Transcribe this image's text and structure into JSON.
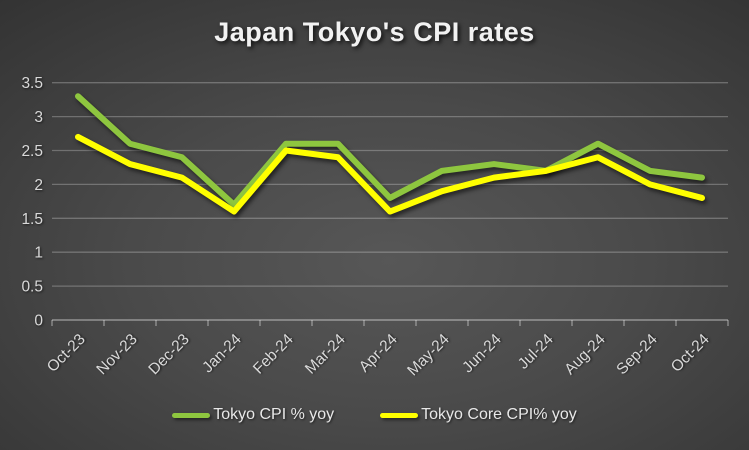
{
  "chart_data": {
    "type": "line",
    "title": "Japan Tokyo's CPI rates",
    "categories": [
      "Oct-23",
      "Nov-23",
      "Dec-23",
      "Jan-24",
      "Feb-24",
      "Mar-24",
      "Apr-24",
      "May-24",
      "Jun-24",
      "Jul-24",
      "Aug-24",
      "Sep-24",
      "Oct-24"
    ],
    "series": [
      {
        "name": "Tokyo CPI % yoy",
        "color": "#8EC63F",
        "values": [
          3.3,
          2.6,
          2.4,
          1.7,
          2.6,
          2.6,
          1.8,
          2.2,
          2.3,
          2.2,
          2.6,
          2.2,
          2.1
        ]
      },
      {
        "name": "Tokyo Core CPI% yoy",
        "color": "#FFFF00",
        "values": [
          2.7,
          2.3,
          2.1,
          1.6,
          2.5,
          2.4,
          1.6,
          1.9,
          2.1,
          2.2,
          2.4,
          2.0,
          1.8
        ]
      }
    ],
    "xlabel": "",
    "ylabel": "",
    "ylim": [
      0,
      3.5
    ],
    "yticks": [
      0,
      0.5,
      1,
      1.5,
      2,
      2.5,
      3,
      3.5
    ],
    "grid": true,
    "legend_position": "bottom",
    "x_label_rotation_deg": 45
  },
  "colors": {
    "axis_text": "#d9d9d9",
    "gridline": "rgba(255,255,255,0.25)",
    "axis_line": "rgba(255,255,255,0.42)",
    "title_text": "#f2f2f2",
    "background_center": "#575757",
    "background_edge": "#1d1d1d"
  }
}
